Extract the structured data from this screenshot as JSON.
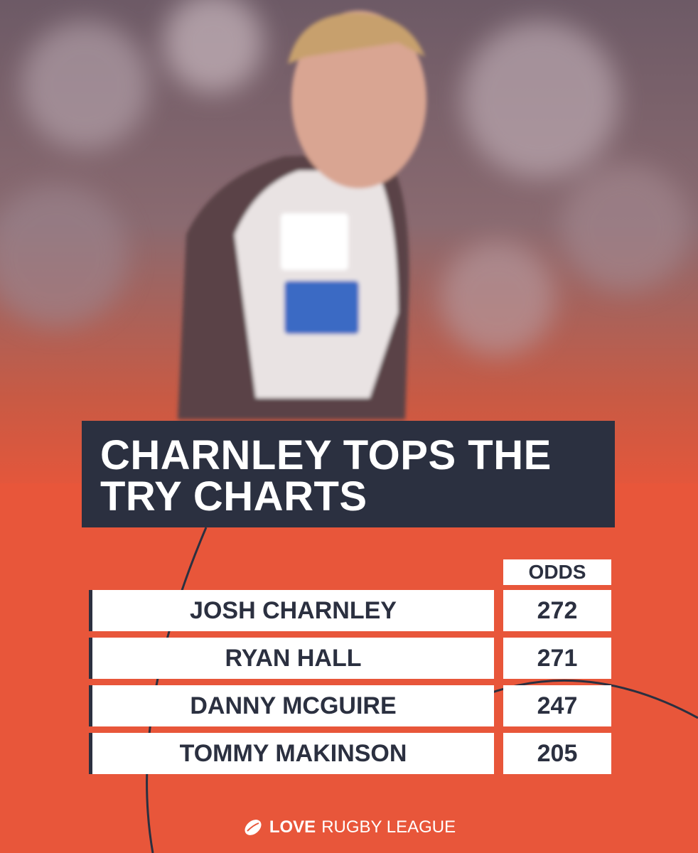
{
  "header": {
    "title_lines": [
      "CHARNLEY TOPS THE",
      "TRY CHARTS"
    ]
  },
  "table": {
    "columns": [
      "ODDS"
    ],
    "rows": [
      [
        "JOSH CHARNLEY",
        "272"
      ],
      [
        "RYAN HALL",
        "271"
      ],
      [
        "DANNY MCGUIRE",
        "247"
      ],
      [
        "TOMMY MAKINSON",
        "205"
      ]
    ]
  },
  "footer": {
    "brand_bold": "LOVE",
    "brand_rest": "RUGBY LEAGUE"
  }
}
